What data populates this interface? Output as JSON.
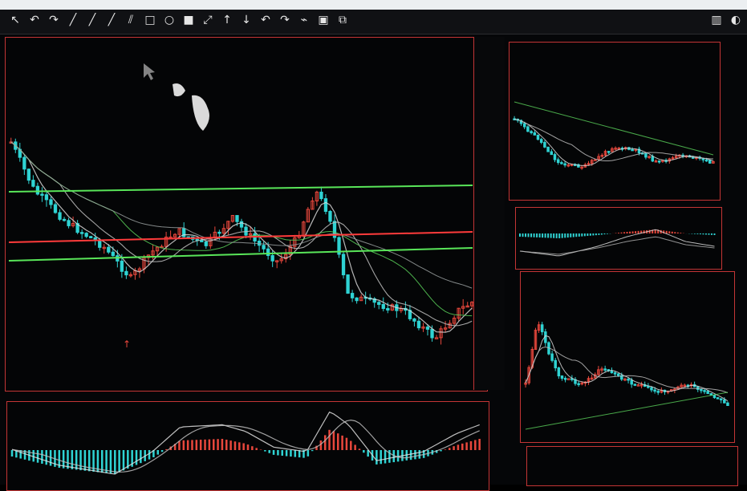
{
  "toolbar": {
    "tools": [
      {
        "name": "cursor-icon",
        "glyph": "↖"
      },
      {
        "name": "undo-icon",
        "glyph": "↶"
      },
      {
        "name": "redo-icon",
        "glyph": "↷"
      },
      {
        "name": "line-icon",
        "glyph": "╱"
      },
      {
        "name": "ray-icon",
        "glyph": "╱"
      },
      {
        "name": "extended-line-icon",
        "glyph": "╱"
      },
      {
        "name": "parallel-channel-icon",
        "glyph": "⫽"
      },
      {
        "name": "rectangle-icon",
        "glyph": "□"
      },
      {
        "name": "circle-icon",
        "glyph": "○"
      },
      {
        "name": "fill-rect-icon",
        "glyph": "■"
      },
      {
        "name": "measure-icon",
        "glyph": "⤢"
      },
      {
        "name": "arrow-up-icon",
        "glyph": "↑"
      },
      {
        "name": "arrow-down-icon",
        "glyph": "↓"
      },
      {
        "name": "curve-icon",
        "glyph": "↶"
      },
      {
        "name": "curve-alt-icon",
        "glyph": "↷"
      },
      {
        "name": "zigzag-icon",
        "glyph": "⌁"
      },
      {
        "name": "save-icon",
        "glyph": "▣"
      },
      {
        "name": "copy-icon",
        "glyph": "⧉"
      }
    ],
    "right_tools": [
      {
        "name": "layout-icon",
        "glyph": "▥"
      },
      {
        "name": "settings-icon",
        "glyph": "◐"
      }
    ]
  },
  "colors": {
    "up": "#e8473c",
    "down": "#2fd3d3",
    "panel_border": "#c43535",
    "ma_white": "#d8d8d8",
    "ma_green": "#5bd25b",
    "hline_green": "#59e659",
    "hline_red": "#ff3b3b"
  }
}
